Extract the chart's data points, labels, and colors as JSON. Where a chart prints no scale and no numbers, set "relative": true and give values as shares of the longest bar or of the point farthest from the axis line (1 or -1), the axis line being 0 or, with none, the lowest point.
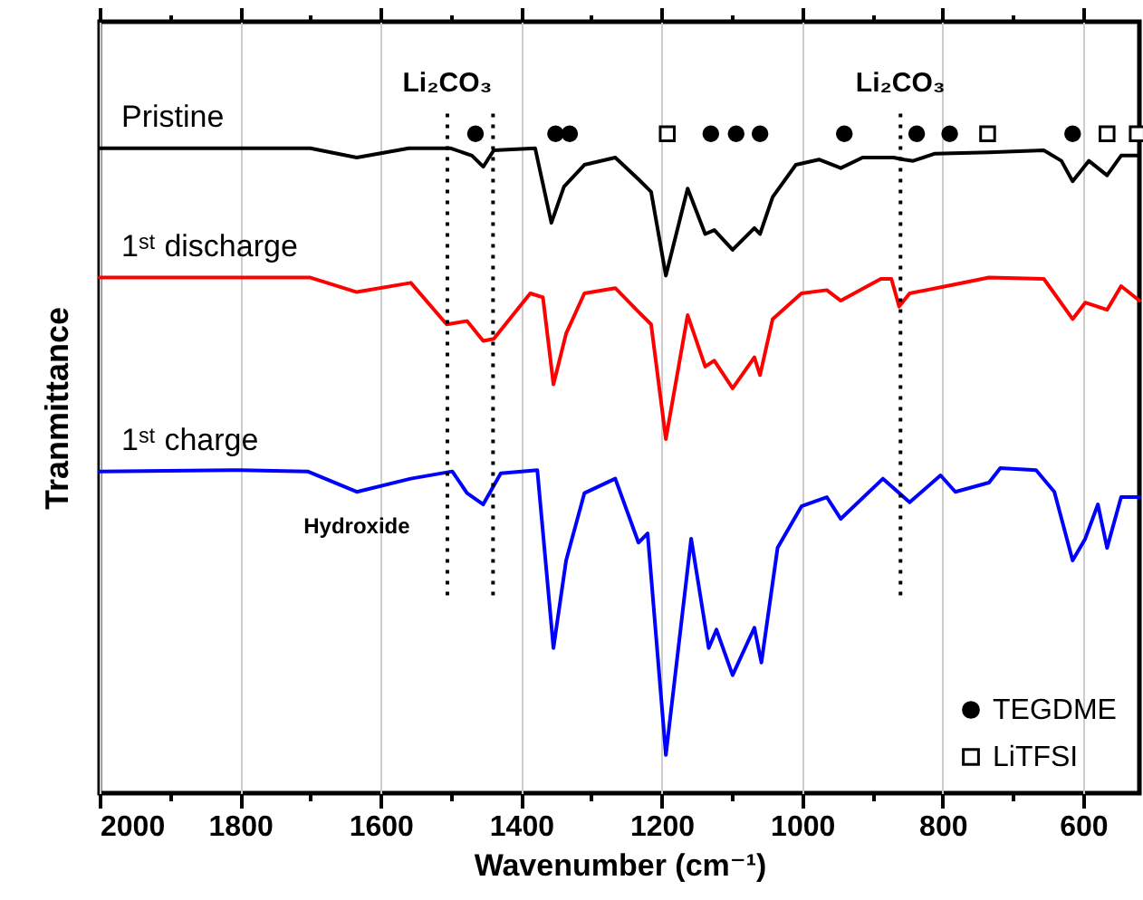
{
  "chart_data": {
    "type": "line",
    "relative": true,
    "xlabel": "Wavenumber (cm⁻¹)",
    "ylabel": "Tranmittance",
    "xlim": [
      2000,
      520
    ],
    "xticks": [
      2000,
      {
        "value": 1900,
        "label": null
      },
      1800,
      {
        "value": 1700,
        "label": null
      },
      1600,
      {
        "value": 1500,
        "label": null
      },
      1400,
      {
        "value": 1300,
        "label": null
      },
      1200,
      {
        "value": 1100,
        "label": null
      },
      1000,
      {
        "value": 900,
        "label": null
      },
      800,
      {
        "value": 700,
        "label": null
      },
      600
    ],
    "grid": "x",
    "legend": "bottom right",
    "series": [
      {
        "name": "Pristine",
        "color": "#000000",
        "x": [
          2000,
          1800,
          1700,
          1634,
          1560,
          1500,
          1470,
          1454,
          1439,
          1380,
          1357,
          1339,
          1310,
          1266,
          1233,
          1215,
          1194,
          1163,
          1138,
          1125,
          1099,
          1068,
          1060,
          1042,
          1009,
          976,
          945,
          914,
          870,
          855,
          842,
          811,
          734,
          656,
          631,
          615,
          592,
          566,
          546,
          520
        ],
        "values": [
          0.978,
          0.978,
          0.978,
          0.964,
          0.978,
          0.978,
          0.967,
          0.95,
          0.975,
          0.978,
          0.865,
          0.92,
          0.953,
          0.964,
          0.931,
          0.912,
          0.785,
          0.917,
          0.848,
          0.854,
          0.824,
          0.857,
          0.848,
          0.904,
          0.953,
          0.961,
          0.948,
          0.964,
          0.964,
          0.961,
          0.959,
          0.97,
          0.972,
          0.975,
          0.959,
          0.928,
          0.959,
          0.937,
          0.967,
          0.967
        ]
      },
      {
        "name": "1ˢᵗ discharge",
        "color": "#ff0000",
        "x": [
          2000,
          1800,
          1700,
          1634,
          1557,
          1506,
          1477,
          1454,
          1439,
          1387,
          1369,
          1354,
          1336,
          1310,
          1266,
          1233,
          1215,
          1194,
          1163,
          1138,
          1125,
          1099,
          1068,
          1060,
          1042,
          1001,
          965,
          945,
          888,
          873,
          862,
          847,
          785,
          734,
          656,
          615,
          597,
          566,
          546,
          520
        ],
        "values": [
          0.782,
          0.782,
          0.782,
          0.76,
          0.774,
          0.711,
          0.716,
          0.686,
          0.689,
          0.758,
          0.752,
          0.62,
          0.697,
          0.758,
          0.766,
          0.73,
          0.711,
          0.537,
          0.725,
          0.647,
          0.656,
          0.614,
          0.661,
          0.634,
          0.719,
          0.758,
          0.763,
          0.747,
          0.78,
          0.78,
          0.738,
          0.758,
          0.771,
          0.782,
          0.78,
          0.719,
          0.744,
          0.733,
          0.769,
          0.747
        ]
      },
      {
        "name": "1ˢᵗ charge",
        "color": "#0000ff",
        "x": [
          2000,
          1800,
          1704,
          1634,
          1557,
          1498,
          1477,
          1454,
          1429,
          1377,
          1354,
          1336,
          1310,
          1266,
          1233,
          1220,
          1194,
          1158,
          1133,
          1122,
          1099,
          1068,
          1058,
          1035,
          1001,
          965,
          945,
          885,
          847,
          803,
          782,
          734,
          718,
          667,
          641,
          615,
          597,
          579,
          566,
          546,
          520
        ],
        "values": [
          0.488,
          0.49,
          0.488,
          0.457,
          0.477,
          0.488,
          0.455,
          0.438,
          0.485,
          0.49,
          0.22,
          0.353,
          0.455,
          0.477,
          0.38,
          0.394,
          0.058,
          0.386,
          0.22,
          0.248,
          0.179,
          0.251,
          0.198,
          0.372,
          0.435,
          0.449,
          0.416,
          0.477,
          0.441,
          0.482,
          0.457,
          0.471,
          0.493,
          0.49,
          0.457,
          0.353,
          0.386,
          0.438,
          0.372,
          0.449,
          0.449
        ]
      },
      {
        "name": "TEGDME",
        "type": "scatter",
        "marker": "circle",
        "color": "#000000",
        "x": [
          1465,
          1351,
          1331,
          1130,
          1094,
          1060,
          940,
          837,
          790,
          615
        ],
        "values": [
          1,
          1,
          1,
          1,
          1,
          1,
          1,
          1,
          1,
          1
        ]
      },
      {
        "name": "LiTFSI",
        "type": "scatter",
        "marker": "square",
        "color": "#000000",
        "x": [
          1192,
          736,
          566,
          523
        ],
        "values": [
          1,
          1,
          1,
          1
        ]
      }
    ],
    "ref_lines": [
      {
        "axis": "x",
        "value": 1505,
        "line_style": "dotted",
        "label": "Li₂CO₃"
      },
      {
        "axis": "x",
        "value": 1440,
        "line_style": "dotted"
      },
      {
        "axis": "x",
        "value": 860,
        "line_style": "dotted",
        "label": "Li₂CO₃"
      }
    ],
    "annotations": [
      {
        "text": "Hydroxide",
        "x": 1634,
        "y": 0.457
      }
    ]
  }
}
